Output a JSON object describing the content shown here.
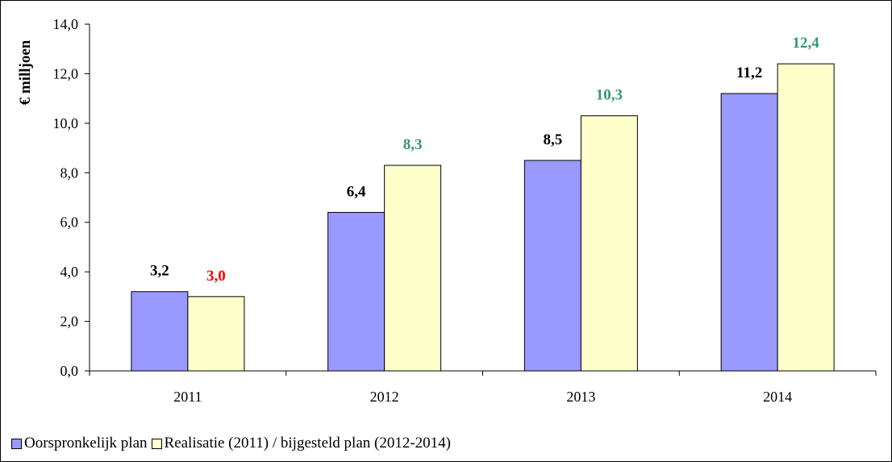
{
  "chart_data": {
    "type": "bar",
    "ylabel": "€ milljoen",
    "xlabel": "",
    "title": "",
    "categories": [
      "2011",
      "2012",
      "2013",
      "2014"
    ],
    "ylim": [
      0,
      14
    ],
    "yticks": [
      "0,0",
      "2,0",
      "4,0",
      "6,0",
      "8,0",
      "10,0",
      "12,0",
      "14,0"
    ],
    "grid": false,
    "legend_position": "bottom-left",
    "series": [
      {
        "name": "Oorspronkelijk plan",
        "color": "#9999ff",
        "values": [
          3.2,
          6.4,
          8.5,
          11.2
        ],
        "labels": [
          "3,2",
          "6,4",
          "8,5",
          "11,2"
        ],
        "label_colors": [
          "#000000",
          "#000000",
          "#000000",
          "#000000"
        ]
      },
      {
        "name": "Realisatie (2011) / bijgesteld plan (2012-2014)",
        "color": "#ffffcc",
        "values": [
          3.0,
          8.3,
          10.3,
          12.4
        ],
        "labels": [
          "3,0",
          "8,3",
          "10,3",
          "12,4"
        ],
        "label_colors": [
          "#ff0000",
          "#339966",
          "#339966",
          "#339966"
        ]
      }
    ]
  }
}
